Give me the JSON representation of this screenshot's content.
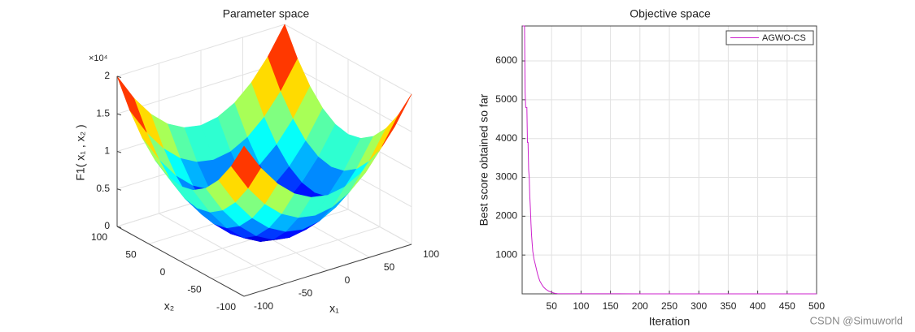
{
  "chart_data": [
    {
      "type": "surface",
      "title": "Parameter space",
      "xlabel": "x₁",
      "ylabel": "x₂",
      "zlabel": "F1( x₁ , x₂ )",
      "x": [
        -100,
        -80,
        -60,
        -40,
        -20,
        0,
        20,
        40,
        60,
        80,
        100
      ],
      "y": [
        -100,
        -80,
        -60,
        -40,
        -20,
        0,
        20,
        40,
        60,
        80,
        100
      ],
      "z": [
        [
          20000,
          16400,
          13600,
          11600,
          10400,
          10000,
          10400,
          11600,
          13600,
          16400,
          20000
        ],
        [
          16400,
          12800,
          10000,
          8000,
          6800,
          6400,
          6800,
          8000,
          10000,
          12800,
          16400
        ],
        [
          13600,
          10000,
          7200,
          5200,
          4000,
          3600,
          4000,
          5200,
          7200,
          10000,
          13600
        ],
        [
          11600,
          8000,
          5200,
          3200,
          2000,
          1600,
          2000,
          3200,
          5200,
          8000,
          11600
        ],
        [
          10400,
          6800,
          4000,
          2000,
          800,
          400,
          800,
          2000,
          4000,
          6800,
          10400
        ],
        [
          10000,
          6400,
          3600,
          1600,
          400,
          0,
          400,
          1600,
          3600,
          6400,
          10000
        ],
        [
          10400,
          6800,
          4000,
          2000,
          800,
          400,
          800,
          2000,
          4000,
          6800,
          10400
        ],
        [
          11600,
          8000,
          5200,
          3200,
          2000,
          1600,
          2000,
          3200,
          5200,
          8000,
          11600
        ],
        [
          13600,
          10000,
          7200,
          5200,
          4000,
          3600,
          4000,
          5200,
          7200,
          10000,
          13600
        ],
        [
          16400,
          12800,
          10000,
          8000,
          6800,
          6400,
          6800,
          8000,
          10000,
          12800,
          16400
        ],
        [
          20000,
          16400,
          13600,
          11600,
          10400,
          10000,
          10400,
          11600,
          13600,
          16400,
          20000
        ]
      ],
      "xlim": [
        -100,
        100
      ],
      "ylim": [
        -100,
        100
      ],
      "zlim": [
        0,
        20000
      ],
      "xticks": [
        -100,
        -50,
        0,
        50,
        100
      ],
      "yticks": [
        -100,
        -50,
        0,
        50,
        100
      ],
      "zticks": [
        0,
        {
          "value": 5000,
          "label": "0.5"
        },
        {
          "value": 10000,
          "label": "1"
        },
        {
          "value": 15000,
          "label": "1.5"
        },
        {
          "value": 20000,
          "label": "2"
        }
      ],
      "zmultiplier": "×10⁴",
      "colormap": "jet",
      "grid": true
    },
    {
      "type": "line",
      "title": "Objective space",
      "xlabel": "Iteration",
      "ylabel": "Best score obtained so far",
      "x": [
        1,
        3,
        4,
        5,
        6,
        8,
        9,
        10,
        11,
        12,
        13,
        14,
        15,
        16,
        17,
        18,
        20,
        22,
        24,
        26,
        28,
        30,
        33,
        36,
        40,
        45,
        50,
        55,
        60,
        100,
        200,
        300,
        400,
        500
      ],
      "series": [
        {
          "name": "AGWO-CS",
          "color": "#cc22cc",
          "values": [
            6900,
            6900,
            6900,
            5200,
            4800,
            4800,
            3900,
            3900,
            3200,
            3000,
            2500,
            2200,
            1800,
            1500,
            1300,
            1100,
            900,
            780,
            650,
            520,
            420,
            330,
            250,
            180,
            120,
            70,
            40,
            15,
            5,
            2,
            1,
            0.5,
            0.3,
            0.2
          ]
        }
      ],
      "xlim": [
        0,
        500
      ],
      "ylim": [
        0,
        6900
      ],
      "xticks": [
        50,
        100,
        150,
        200,
        250,
        300,
        350,
        400,
        450,
        500
      ],
      "yticks": [
        1000,
        2000,
        3000,
        4000,
        5000,
        6000
      ],
      "grid": true,
      "legend": "upper right"
    }
  ],
  "watermark": "CSDN @Simuworld"
}
